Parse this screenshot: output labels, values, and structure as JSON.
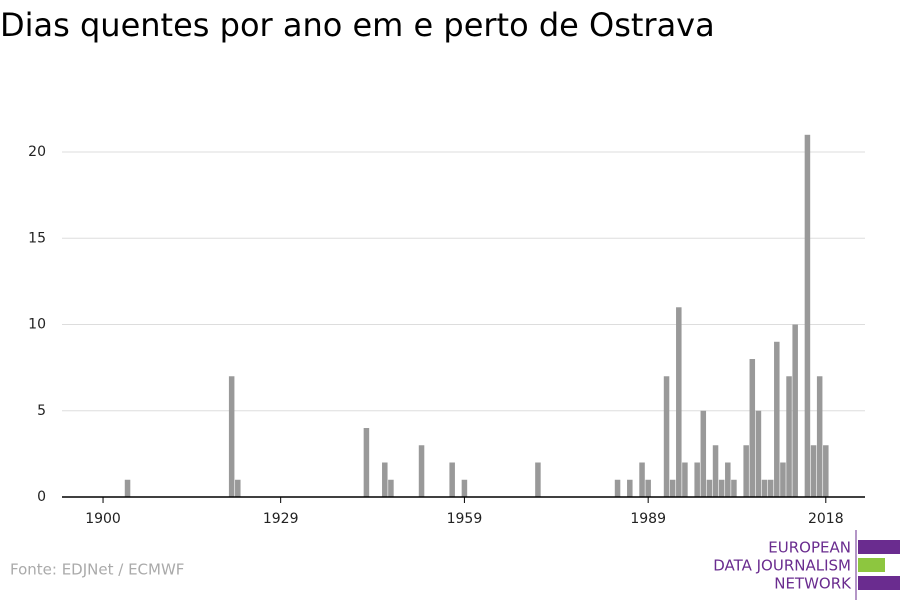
{
  "chart_data": {
    "type": "bar",
    "title": "Dias quentes por ano em e perto de Ostrava",
    "x": [
      1904,
      1921,
      1922,
      1943,
      1946,
      1947,
      1952,
      1957,
      1959,
      1971,
      1984,
      1986,
      1988,
      1989,
      1992,
      1993,
      1994,
      1995,
      1997,
      1998,
      1999,
      2000,
      2001,
      2002,
      2003,
      2005,
      2006,
      2007,
      2008,
      2009,
      2010,
      2011,
      2012,
      2013,
      2015,
      2016,
      2017,
      2018
    ],
    "values": [
      1,
      7,
      1,
      4,
      2,
      1,
      3,
      2,
      1,
      2,
      1,
      1,
      2,
      1,
      7,
      1,
      11,
      2,
      2,
      5,
      1,
      3,
      1,
      2,
      1,
      3,
      8,
      5,
      1,
      1,
      9,
      2,
      7,
      10,
      21,
      3,
      7,
      3
    ],
    "color": "#999999",
    "xlim": [
      1893.3,
      2024.4
    ],
    "xticks": [
      1900,
      1929,
      1959,
      1989,
      2018
    ],
    "ylim": [
      0,
      21
    ],
    "yticks": [
      0,
      5,
      10,
      15,
      20
    ],
    "grid": true,
    "source": "Fonte: EDJNet / ECMWF",
    "logo": [
      "EUROPEAN",
      "DATA JOURNALISM",
      "NETWORK"
    ]
  }
}
